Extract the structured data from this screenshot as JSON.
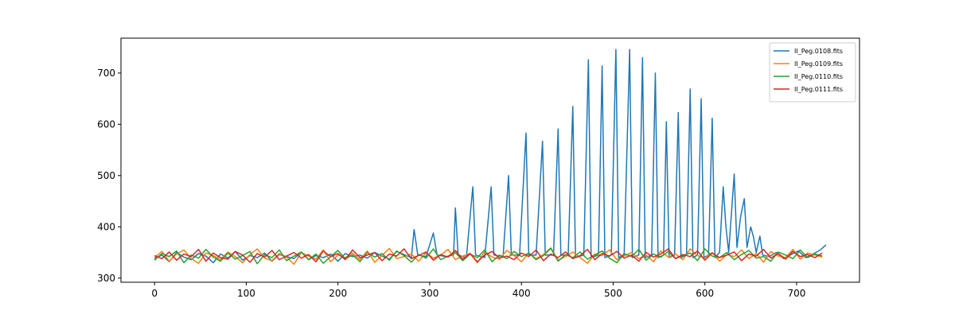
{
  "chart_data": {
    "type": "line",
    "x": [
      0,
      8,
      16,
      24,
      32,
      40,
      48,
      56,
      64,
      72,
      80,
      88,
      96,
      104,
      112,
      120,
      128,
      136,
      144,
      152,
      160,
      168,
      176,
      184,
      192,
      200,
      208,
      216,
      224,
      232,
      240,
      248,
      256,
      264,
      272,
      280,
      288,
      296,
      304,
      312,
      320,
      328,
      336,
      344,
      352,
      360,
      368,
      376,
      384,
      392,
      400,
      408,
      416,
      424,
      432,
      440,
      448,
      456,
      464,
      472,
      480,
      488,
      496,
      504,
      512,
      520,
      528,
      536,
      544,
      552,
      560,
      568,
      576,
      584,
      592,
      600,
      608,
      616,
      624,
      632,
      640,
      648,
      656,
      664,
      672,
      680,
      688,
      696,
      704,
      712,
      720,
      728
    ],
    "series": [
      {
        "name": "II_Peg.0108.fits",
        "color": "#1f77b4",
        "x": [
          0,
          8,
          16,
          24,
          32,
          40,
          48,
          56,
          64,
          72,
          80,
          88,
          96,
          104,
          112,
          120,
          128,
          136,
          144,
          152,
          160,
          168,
          176,
          184,
          192,
          200,
          208,
          216,
          224,
          232,
          240,
          248,
          256,
          264,
          272,
          280,
          283,
          287,
          296,
          304,
          308,
          318,
          326,
          328,
          331,
          340,
          347,
          350,
          360,
          367,
          370,
          380,
          386,
          389,
          398,
          405,
          408,
          416,
          423,
          426,
          435,
          440,
          443,
          451,
          456,
          459,
          468,
          473,
          476,
          484,
          488,
          491,
          498,
          503,
          506,
          512,
          518,
          521,
          528,
          532,
          535,
          542,
          546,
          549,
          555,
          558,
          561,
          567,
          571,
          574,
          580,
          584,
          587,
          592,
          596,
          599,
          604,
          608,
          611,
          616,
          620,
          623,
          626,
          632,
          635,
          639,
          643,
          646,
          650,
          653,
          656,
          660,
          663,
          670,
          678,
          686,
          694,
          702,
          710,
          718,
          726,
          732
        ],
        "values": [
          338,
          345,
          332,
          350,
          341,
          336,
          348,
          343,
          330,
          347,
          339,
          352,
          335,
          344,
          340,
          349,
          333,
          346,
          342,
          338,
          351,
          336,
          344,
          340,
          347,
          333,
          348,
          342,
          345,
          339,
          350,
          343,
          337,
          352,
          346,
          340,
          395,
          345,
          342,
          388,
          345,
          342,
          345,
          437,
          345,
          340,
          478,
          345,
          340,
          478,
          345,
          342,
          500,
          345,
          345,
          583,
          345,
          345,
          567,
          345,
          345,
          591,
          345,
          345,
          635,
          340,
          345,
          726,
          340,
          345,
          714,
          340,
          345,
          746,
          340,
          345,
          746,
          340,
          345,
          730,
          340,
          345,
          700,
          340,
          345,
          605,
          340,
          345,
          623,
          340,
          345,
          669,
          340,
          345,
          650,
          340,
          345,
          612,
          340,
          350,
          478,
          400,
          350,
          503,
          360,
          420,
          455,
          360,
          400,
          380,
          350,
          382,
          345,
          342,
          350,
          338,
          346,
          353,
          340,
          347,
          355,
          365
        ]
      },
      {
        "name": "II_Peg.0109.fits",
        "color": "#ff7f0e",
        "values": [
          340,
          352,
          333,
          347,
          355,
          338,
          329,
          349,
          344,
          336,
          351,
          342,
          330,
          346,
          357,
          339,
          334,
          348,
          341,
          327,
          350,
          343,
          337,
          355,
          332,
          345,
          340,
          349,
          336,
          353,
          331,
          344,
          358,
          338,
          342,
          347,
          333,
          350,
          339,
          345,
          356,
          336,
          343,
          348,
          330,
          352,
          341,
          337,
          354,
          344,
          332,
          349,
          338,
          346,
          359,
          335,
          342,
          351,
          340,
          329,
          347,
          344,
          355,
          336,
          343,
          350,
          338,
          345,
          332,
          353,
          341,
          347,
          336,
          357,
          344,
          339,
          350,
          333,
          346,
          342,
          355,
          338,
          348,
          331,
          352,
          343,
          340,
          356,
          337,
          349,
          345,
          341
        ]
      },
      {
        "name": "II_Peg.0110.fits",
        "color": "#2ca02c",
        "values": [
          335,
          348,
          342,
          353,
          330,
          345,
          339,
          356,
          341,
          333,
          349,
          337,
          344,
          352,
          328,
          346,
          340,
          355,
          334,
          343,
          351,
          336,
          347,
          329,
          342,
          354,
          338,
          345,
          332,
          350,
          341,
          348,
          335,
          353,
          344,
          331,
          346,
          339,
          357,
          336,
          343,
          350,
          334,
          347,
          340,
          355,
          332,
          345,
          338,
          352,
          342,
          349,
          336,
          344,
          358,
          333,
          346,
          340,
          351,
          337,
          345,
          353,
          339,
          330,
          348,
          342,
          356,
          335,
          347,
          341,
          352,
          338,
          344,
          349,
          334,
          357,
          343,
          340,
          350,
          336,
          346,
          354,
          339,
          342,
          333,
          351,
          345,
          338,
          355,
          340,
          347,
          343
        ]
      },
      {
        "name": "II_Peg.0111.fits",
        "color": "#d62728",
        "values": [
          344,
          338,
          351,
          335,
          347,
          342,
          356,
          333,
          349,
          340,
          337,
          352,
          345,
          331,
          348,
          341,
          354,
          336,
          343,
          350,
          339,
          346,
          332,
          353,
          342,
          348,
          336,
          355,
          340,
          345,
          350,
          334,
          347,
          343,
          357,
          338,
          344,
          351,
          335,
          346,
          341,
          354,
          337,
          348,
          332,
          345,
          352,
          339,
          343,
          336,
          349,
          342,
          355,
          334,
          347,
          340,
          351,
          338,
          344,
          356,
          336,
          348,
          343,
          352,
          339,
          345,
          333,
          350,
          341,
          347,
          357,
          338,
          346,
          342,
          353,
          335,
          349,
          340,
          345,
          351,
          334,
          347,
          343,
          356,
          339,
          348,
          337,
          352,
          342,
          346,
          340,
          349
        ]
      }
    ],
    "xlim": [
      -36.6,
      768.6
    ],
    "xticks": [
      0,
      100,
      200,
      300,
      400,
      500,
      600,
      700
    ],
    "ylim": [
      292,
      768
    ],
    "yticks": [
      300,
      400,
      500,
      600,
      700
    ],
    "grid": false,
    "legend": "upper right"
  }
}
